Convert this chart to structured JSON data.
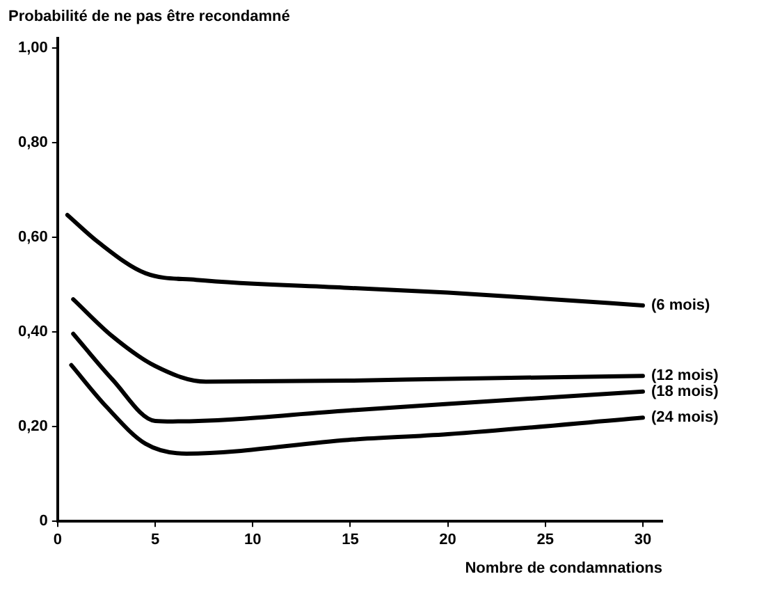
{
  "chart_data": {
    "type": "line",
    "ylabel": "Probabilité de ne pas être recondamné",
    "xlabel": "Nombre de condamnations",
    "xlim": [
      0,
      31
    ],
    "xticks": [
      0,
      5,
      10,
      15,
      20,
      25,
      30
    ],
    "ylim": [
      0,
      1.02
    ],
    "yticks": [
      {
        "value": 0,
        "label": "0"
      },
      {
        "value": 0.2,
        "label": "0,20"
      },
      {
        "value": 0.4,
        "label": "0,40"
      },
      {
        "value": 0.6,
        "label": "0,60"
      },
      {
        "value": 0.8,
        "label": "0,80"
      },
      {
        "value": 1,
        "label": "1,00"
      }
    ],
    "grid": false,
    "legend": false,
    "marker": "none",
    "line_style": "solid",
    "series": [
      {
        "name": "(6 mois)",
        "color": "#000000",
        "x": [
          0.5,
          2.1,
          4.5,
          7.1,
          14.9,
          20,
          25,
          30
        ],
        "values": [
          0.647,
          0.589,
          0.524,
          0.51,
          0.493,
          0.483,
          0.47,
          0.456
        ]
      },
      {
        "name": "(12 mois)",
        "color": "#000000",
        "x": [
          0.8,
          2.8,
          5,
          7.6,
          14.9,
          20,
          30
        ],
        "values": [
          0.469,
          0.391,
          0.328,
          0.295,
          0.297,
          0.301,
          0.307
        ]
      },
      {
        "name": "(18 mois)",
        "color": "#000000",
        "x": [
          0.8,
          2.8,
          5,
          5.9,
          14.9,
          20,
          30
        ],
        "values": [
          0.396,
          0.3,
          0.212,
          0.211,
          0.234,
          0.248,
          0.274
        ]
      },
      {
        "name": "(24 mois)",
        "color": "#000000",
        "x": [
          0.7,
          2.5,
          4.5,
          6.6,
          14.9,
          20,
          30
        ],
        "values": [
          0.33,
          0.242,
          0.164,
          0.143,
          0.172,
          0.184,
          0.219
        ]
      }
    ]
  }
}
